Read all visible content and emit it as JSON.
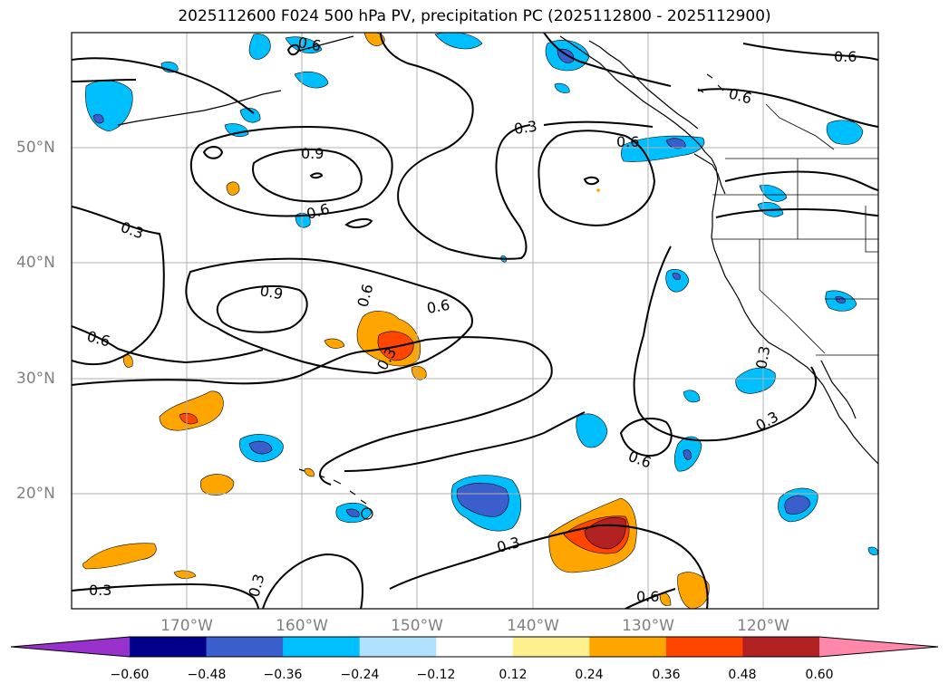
{
  "title": "2025112600 F024 500 hPa PV, precipitation PC (2025112800 - 2025112900)",
  "lat_labels": [
    "50°N",
    "40°N",
    "30°N",
    "20°N"
  ],
  "lon_labels": [
    "170°W",
    "160°W",
    "150°W",
    "140°W",
    "130°W",
    "120°W"
  ],
  "contour_labels": [
    "0.6",
    "0.6",
    "0.3",
    "0.6",
    "0.9",
    "0.6",
    "0.3",
    "0.6",
    "0.9",
    "0.6",
    "0.6",
    "0.3",
    "0.6",
    "0.3",
    "0.3",
    "0.3",
    "0.3",
    "0.6",
    "0.6",
    "0.3"
  ],
  "colorbar": {
    "ticks": [
      "−0.60",
      "−0.48",
      "−0.36",
      "−0.24",
      "−0.12",
      "0.12",
      "0.24",
      "0.36",
      "0.48",
      "0.60"
    ],
    "colors": [
      "#9932cc",
      "#00008b",
      "#3a5fcd",
      "#00bfff",
      "#b0e2ff",
      "#ffffff",
      "#fff08f",
      "#ffa500",
      "#ff4500",
      "#b22222",
      "#ff88aa"
    ]
  },
  "colors": {
    "contour": "#000000",
    "grid": "#b0b0b0",
    "coast": "#000000"
  }
}
